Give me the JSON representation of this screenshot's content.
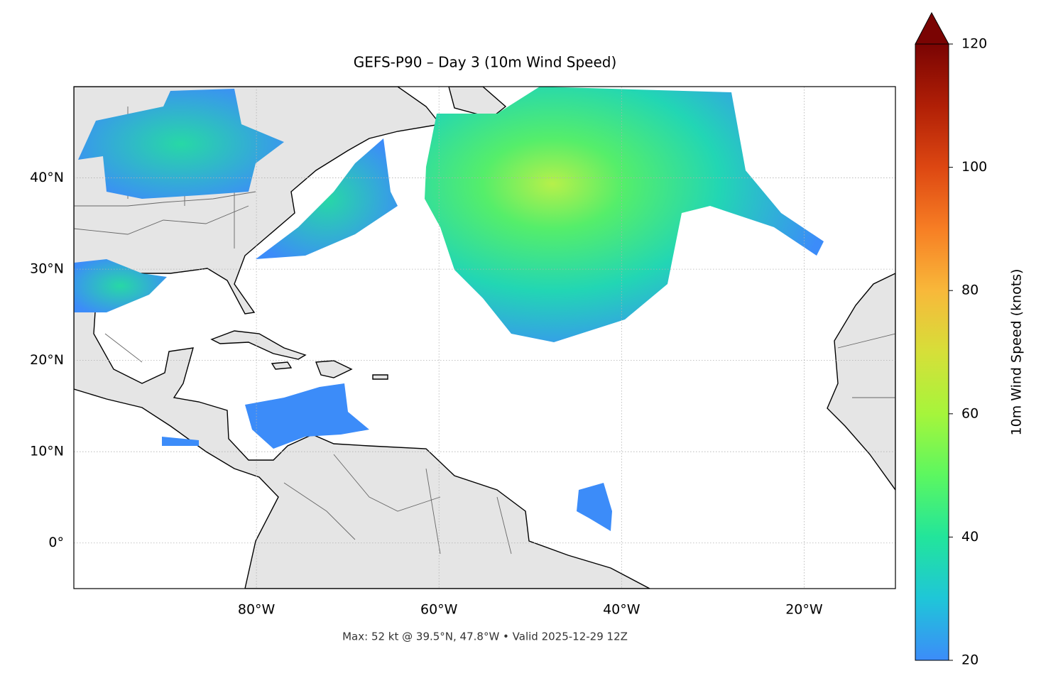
{
  "map": {
    "title": "GEFS-P90 – Day 3 (10m Wind Speed)",
    "xlim": [
      -100,
      -10
    ],
    "ylim": [
      -5,
      50
    ],
    "xticks": [
      {
        "value": -80,
        "label": "80°W"
      },
      {
        "value": -60,
        "label": "60°W"
      },
      {
        "value": -40,
        "label": "40°W"
      },
      {
        "value": -20,
        "label": "20°W"
      }
    ],
    "yticks": [
      {
        "value": 0,
        "label": "0°"
      },
      {
        "value": 10,
        "label": "10°N"
      },
      {
        "value": 20,
        "label": "20°N"
      },
      {
        "value": 30,
        "label": "30°N"
      },
      {
        "value": 40,
        "label": "40°N"
      }
    ],
    "grid": true,
    "footnote": "Max: 52 kt @ 39.5°N, 47.8°W • Valid 2025-12-29 12Z"
  },
  "colorbar": {
    "label": "10m Wind Speed (knots)",
    "lim": [
      20,
      120
    ],
    "ticks": [
      20,
      40,
      60,
      80,
      100,
      120
    ]
  }
}
